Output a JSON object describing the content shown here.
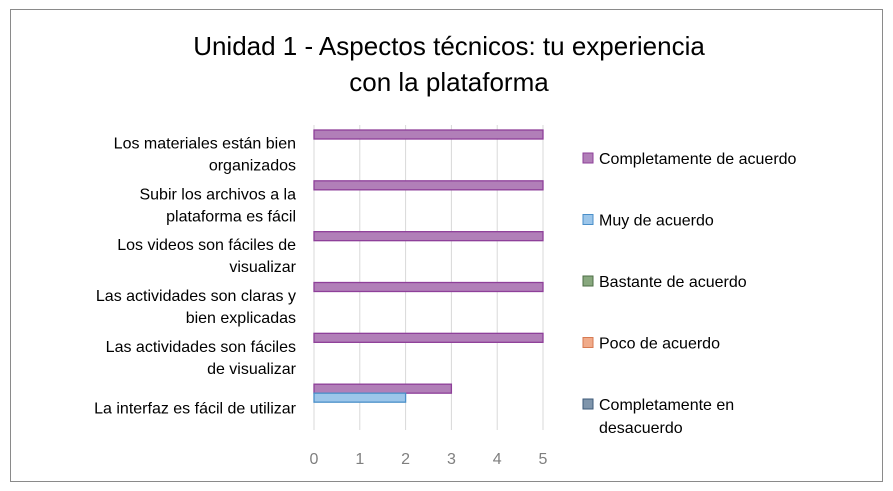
{
  "chart_data": {
    "type": "bar",
    "orientation": "horizontal",
    "title_lines": [
      "Unidad 1 - Aspectos técnicos: tu experiencia",
      "con la plataforma"
    ],
    "categories": [
      [
        "Los materiales están bien",
        "organizados"
      ],
      [
        "Subir los archivos a la",
        "plataforma es fácil"
      ],
      [
        "Los videos son fáciles de",
        "visualizar"
      ],
      [
        "Las actividades son claras y",
        "bien explicadas"
      ],
      [
        "Las actividades son fáciles",
        "de visualizar"
      ],
      [
        "La interfaz es fácil de utilizar"
      ]
    ],
    "series": [
      {
        "name": "Completamente de acuerdo",
        "color": "#b17fb8",
        "stroke": "#8e3f99",
        "values": [
          5,
          5,
          5,
          5,
          5,
          3
        ]
      },
      {
        "name": "Muy de acuerdo",
        "color": "#9cc6ea",
        "stroke": "#4a8fc9",
        "values": [
          0,
          0,
          0,
          0,
          0,
          2
        ]
      },
      {
        "name": "Bastante de acuerdo",
        "color": "#88a87e",
        "stroke": "#4d6e45",
        "values": [
          0,
          0,
          0,
          0,
          0,
          0
        ]
      },
      {
        "name": "Poco de acuerdo",
        "color": "#f0ab8a",
        "stroke": "#d77a52",
        "values": [
          0,
          0,
          0,
          0,
          0,
          0
        ]
      },
      {
        "name": "Completamente en desacuerdo",
        "legend_lines": [
          "Completamente en",
          "desacuerdo"
        ],
        "color": "#7f95ab",
        "stroke": "#3e5a78",
        "values": [
          0,
          0,
          0,
          0,
          0,
          0
        ]
      }
    ],
    "xlim": [
      0,
      5
    ],
    "xticks": [
      "0",
      "1",
      "2",
      "3",
      "4",
      "5"
    ],
    "grid": true,
    "legend_placement": "right"
  }
}
